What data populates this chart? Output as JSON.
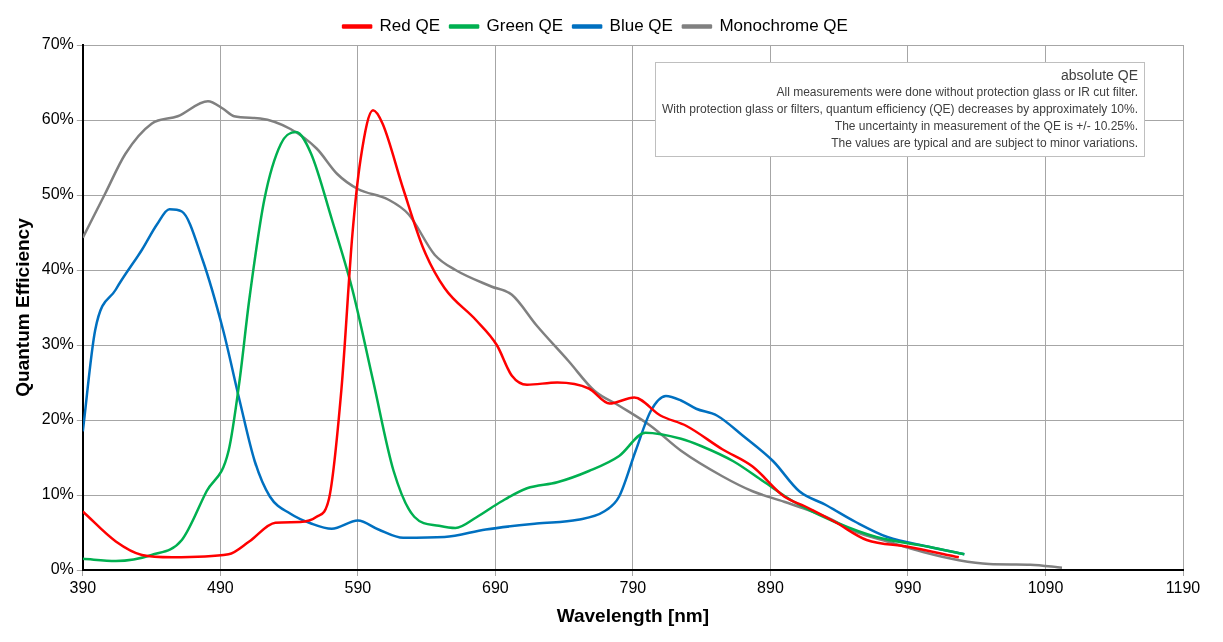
{
  "chart_data": {
    "type": "line",
    "xlabel": "Wavelength [nm]",
    "ylabel": "Quantum Efficiency",
    "legend": "top",
    "grid": true,
    "marker": "none",
    "line_style": "solid",
    "xlim": [
      390,
      1190
    ],
    "xticks": [
      390,
      490,
      590,
      690,
      790,
      890,
      990,
      1090,
      1190
    ],
    "ylim": [
      0,
      70
    ],
    "yticks": [
      {
        "value": 0,
        "label": "0%"
      },
      {
        "value": 10,
        "label": "10%"
      },
      {
        "value": 20,
        "label": "20%"
      },
      {
        "value": 30,
        "label": "30%"
      },
      {
        "value": 40,
        "label": "40%"
      },
      {
        "value": 50,
        "label": "50%"
      },
      {
        "value": 60,
        "label": "60%"
      },
      {
        "value": 70,
        "label": "70%"
      }
    ],
    "annotations": [
      "absolute QE",
      "All measurements were done without protection glass or IR cut filter.",
      "With protection glass or filters, quantum efficiency (QE) decreases by approximately 10%.",
      "The uncertainty in measurement of the QE is +/- 10.25%.",
      "The values are typical and are subject to minor variations."
    ],
    "series": [
      {
        "name": "Red QE",
        "color": "#ff0000",
        "x": [
          390,
          414,
          433,
          455,
          496,
          511,
          530,
          548,
          560,
          569,
          578,
          586,
          592,
          601,
          608,
          623,
          638,
          653,
          676,
          691,
          702,
          713,
          735,
          758,
          773,
          791,
          810,
          829,
          855,
          877,
          900,
          915,
          937,
          960,
          990,
          1027
        ],
        "values": [
          7.8,
          3.8,
          2.0,
          1.7,
          2.1,
          3.8,
          6.3,
          6.4,
          7.1,
          9.5,
          24,
          44.7,
          54.8,
          61.3,
          59.5,
          50.8,
          42.7,
          37.6,
          33.3,
          30,
          25.9,
          24.7,
          25,
          24.2,
          22.2,
          23,
          20.6,
          19.2,
          16.1,
          13.8,
          9.8,
          8.5,
          6.4,
          4.0,
          3.1,
          1.7
        ]
      },
      {
        "name": "Green QE",
        "color": "#00b050",
        "x": [
          390,
          414,
          440,
          462,
          480,
          496,
          504,
          511,
          522,
          534,
          545,
          556,
          571,
          586,
          601,
          616,
          631,
          649,
          661,
          676,
          694,
          713,
          735,
          758,
          780,
          799,
          825,
          840,
          863,
          885,
          907,
          937,
          967,
          1005,
          1031
        ],
        "values": [
          1.5,
          1.2,
          2.0,
          4.0,
          10.5,
          15.9,
          25.3,
          36,
          49.4,
          56.8,
          58.4,
          55.5,
          46.8,
          37.4,
          25.3,
          13.2,
          7.1,
          5.9,
          5.6,
          7,
          9.1,
          10.9,
          11.7,
          13.2,
          15.2,
          18.3,
          17.5,
          16.5,
          14.5,
          11.8,
          9.1,
          6.4,
          4.4,
          3.1,
          2.1
        ]
      },
      {
        "name": "Blue QE",
        "color": "#0070c0",
        "x": [
          390,
          399,
          414,
          433,
          444,
          453,
          462,
          477,
          492,
          504,
          515,
          526,
          541,
          556,
          571,
          590,
          605,
          623,
          653,
          683,
          720,
          750,
          769,
          780,
          792,
          803,
          814,
          825,
          836,
          851,
          870,
          892,
          911,
          930,
          952,
          975,
          1005,
          1031
        ],
        "values": [
          18.5,
          32,
          37.4,
          42.7,
          46.1,
          48.1,
          47.8,
          41.4,
          32,
          22.6,
          14.5,
          9.8,
          7.5,
          6.2,
          5.5,
          6.6,
          5.4,
          4.3,
          4.4,
          5.4,
          6.2,
          6.7,
          7.8,
          9.8,
          15.9,
          21.2,
          23.2,
          22.6,
          21.5,
          20.6,
          17.9,
          14.5,
          10.5,
          8.7,
          6.4,
          4.4,
          3.1,
          2.1
        ]
      },
      {
        "name": "Monochrome QE",
        "color": "#808080",
        "x": [
          390,
          406,
          421,
          440,
          459,
          481,
          492,
          500,
          519,
          541,
          560,
          575,
          590,
          612,
          627,
          646,
          661,
          687,
          702,
          720,
          743,
          762,
          780,
          803,
          825,
          855,
          877,
          900,
          930,
          952,
          975,
          1001,
          1027,
          1049,
          1079,
          1102
        ],
        "values": [
          44.3,
          50.1,
          55.5,
          59.5,
          60.5,
          62.5,
          61.5,
          60.5,
          60.2,
          58.8,
          56.2,
          52.8,
          50.8,
          49.4,
          47.4,
          42,
          40,
          37.8,
          36.7,
          32.6,
          27.9,
          23.9,
          21.9,
          19.2,
          15.9,
          12.5,
          10.5,
          9.1,
          7.1,
          5.1,
          3.8,
          2.4,
          1.3,
          0.8,
          0.7,
          0.3
        ]
      }
    ]
  }
}
